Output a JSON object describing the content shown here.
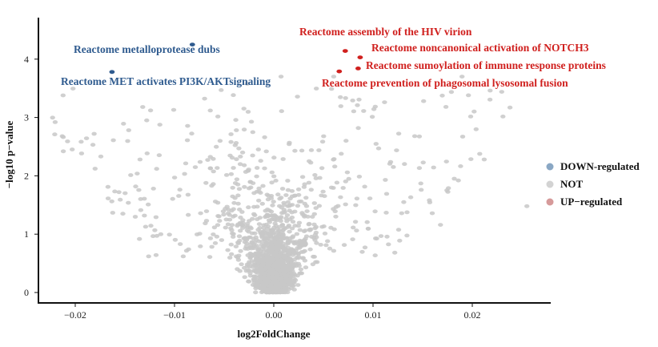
{
  "chart_data": {
    "type": "scatter",
    "title": "",
    "xlabel": "log2FoldChange",
    "ylabel": "−log10 p−value",
    "xlim": [
      -0.023,
      0.0275
    ],
    "ylim": [
      -0.1,
      4.45
    ],
    "x_ticks": [
      -0.02,
      -0.01,
      0.0,
      0.01,
      0.02
    ],
    "x_tick_labels": [
      "−0.02",
      "−0.01",
      "0.00",
      "0.01",
      "0.02"
    ],
    "y_ticks": [
      0,
      1,
      2,
      3,
      4
    ],
    "y_tick_labels": [
      "0",
      "1",
      "2",
      "3",
      "4"
    ],
    "grid": false,
    "legend_position": "right",
    "colors": {
      "down": "#2f5b8f",
      "not": "#c8c8c8",
      "up": "#d0201e",
      "legend_down": "#8aa7c4",
      "legend_not": "#d3d3d3",
      "legend_up": "#d69a9a"
    },
    "series": [
      {
        "name": "DOWN-regulated",
        "points": [
          [
            -0.0082,
            4.25
          ],
          [
            -0.0163,
            3.78
          ]
        ]
      },
      {
        "name": "NOT",
        "points": []
      },
      {
        "name": "UP−regulated",
        "points": [
          [
            0.0072,
            4.14
          ],
          [
            0.0087,
            4.03
          ],
          [
            0.0085,
            3.84
          ],
          [
            0.0066,
            3.79
          ]
        ]
      }
    ],
    "annotations": [
      {
        "text": "Reactome metalloprotease dubs",
        "group": "down"
      },
      {
        "text": "Reactome MET activates PI3K/AKTsignaling",
        "group": "down"
      },
      {
        "text": "Reactome assembly of  the HIV virion",
        "group": "up"
      },
      {
        "text": "Reactome noncanonical activation of NOTCH3",
        "group": "up"
      },
      {
        "text": "Reactome sumoylation of immune response proteins",
        "group": "up"
      },
      {
        "text": "Reactome prevention of phagosomal lysosomal fusion",
        "group": "up"
      }
    ]
  }
}
